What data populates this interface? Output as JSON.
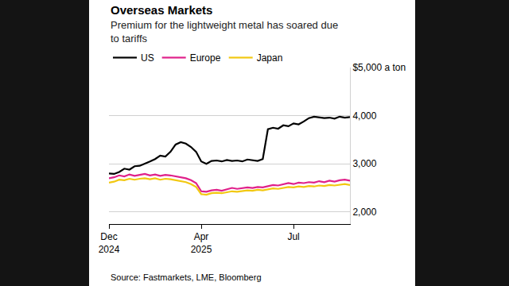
{
  "chart_data": {
    "type": "line",
    "title": "Overseas Markets",
    "subtitle": "Premium for the lightweight metal has soared due to tariffs",
    "source": "Source: Fastmarkets, LME, Bloomberg",
    "categories": [
      "Dec 2024",
      null,
      null,
      null,
      null,
      null,
      null,
      null,
      null,
      null,
      null,
      null,
      null,
      null,
      null,
      null,
      null,
      null,
      "Apr 2025",
      null,
      null,
      null,
      null,
      null,
      null,
      null,
      null,
      null,
      null,
      null,
      null,
      null,
      null,
      null,
      null,
      null,
      "Jul",
      null,
      null,
      null,
      null,
      null,
      null,
      null,
      null,
      null,
      null,
      null
    ],
    "series": [
      {
        "name": "US",
        "color": "#000000",
        "values": [
          2800,
          2790,
          2830,
          2900,
          2880,
          2950,
          2960,
          3000,
          3050,
          3100,
          3170,
          3150,
          3250,
          3400,
          3450,
          3420,
          3350,
          3250,
          3050,
          3000,
          3060,
          3070,
          3050,
          3080,
          3060,
          3070,
          3050,
          3090,
          3080,
          3060,
          3100,
          3720,
          3750,
          3730,
          3800,
          3780,
          3840,
          3820,
          3880,
          3950,
          3980,
          3970,
          3950,
          3960,
          3940,
          3980,
          3960,
          3970
        ]
      },
      {
        "name": "Europe",
        "color": "#e0218a",
        "values": [
          2700,
          2720,
          2760,
          2740,
          2780,
          2750,
          2770,
          2790,
          2760,
          2780,
          2750,
          2770,
          2760,
          2740,
          2720,
          2700,
          2660,
          2600,
          2430,
          2420,
          2450,
          2460,
          2440,
          2470,
          2500,
          2480,
          2490,
          2510,
          2500,
          2520,
          2510,
          2530,
          2560,
          2550,
          2570,
          2600,
          2580,
          2610,
          2600,
          2620,
          2610,
          2640,
          2620,
          2650,
          2630,
          2660,
          2670,
          2650
        ]
      },
      {
        "name": "Japan",
        "color": "#f2c811",
        "values": [
          2610,
          2630,
          2670,
          2660,
          2690,
          2670,
          2690,
          2700,
          2680,
          2700,
          2670,
          2690,
          2680,
          2660,
          2640,
          2620,
          2580,
          2520,
          2370,
          2360,
          2390,
          2400,
          2390,
          2410,
          2430,
          2420,
          2430,
          2450,
          2440,
          2460,
          2450,
          2470,
          2490,
          2480,
          2500,
          2520,
          2510,
          2530,
          2520,
          2540,
          2530,
          2550,
          2540,
          2560,
          2550,
          2570,
          2580,
          2560
        ]
      }
    ],
    "ylim": [
      1750,
      5000
    ],
    "yticks": [
      {
        "value": 2000,
        "label": "2,000"
      },
      {
        "value": 3000,
        "label": "3,000"
      },
      {
        "value": 4000,
        "label": "4,000"
      },
      {
        "value": 5000,
        "label": "$5,000 a ton"
      }
    ],
    "grid": true,
    "legend": "top left",
    "line_style": "solid"
  }
}
